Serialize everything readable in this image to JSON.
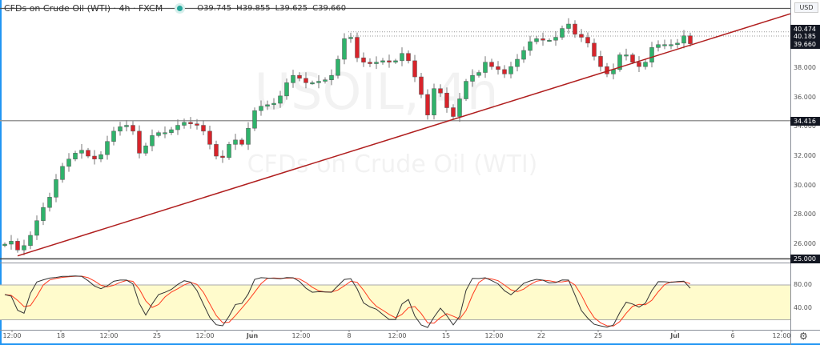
{
  "header": {
    "title": "CFDs on Crude Oil (WTI) · 4h · FXCM",
    "open": "O39.745",
    "high": "H39.855",
    "low": "L39.625",
    "close": "C39.660"
  },
  "watermark": {
    "symbol": "USOIL, 4h",
    "name": "CFDs on Crude Oil (WTI)"
  },
  "price_axis": {
    "currency": "USD",
    "labels": [
      "38.000",
      "36.000",
      "34.000",
      "32.000",
      "30.000",
      "28.000",
      "26.000"
    ],
    "tags": {
      "high_line": "40.474",
      "resistance": "40.185",
      "last": "39.660",
      "support_upper": "34.416",
      "support_lower": "25.000"
    }
  },
  "stoch_axis": {
    "labels": [
      "80.00",
      "40.00"
    ]
  },
  "time_axis": {
    "labels": [
      "12:00",
      "18",
      "12:00",
      "25",
      "12:00",
      "Jun",
      "12:00",
      "8",
      "12:00",
      "15",
      "12:00",
      "22",
      "25",
      "Jul",
      "6",
      "12:00"
    ]
  },
  "colors": {
    "up": "#2fb36b",
    "down": "#d8232a",
    "trendline": "#b01e1e",
    "stoch_k": "#333333",
    "stoch_d": "#ff3b1f",
    "band": "#fffbcc"
  },
  "chart_data": {
    "type": "candlestick",
    "title": "CFDs on Crude Oil (WTI) · 4h · FXCM",
    "ylim": [
      24.6,
      42.0
    ],
    "closes": [
      26.0,
      26.2,
      25.6,
      25.9,
      26.6,
      27.6,
      28.5,
      29.2,
      30.4,
      31.3,
      31.8,
      32.2,
      32.4,
      32.0,
      31.8,
      32.1,
      33.0,
      33.7,
      34.0,
      34.1,
      33.7,
      32.2,
      32.7,
      33.4,
      33.6,
      33.6,
      33.8,
      34.1,
      34.3,
      34.2,
      34.1,
      33.7,
      32.8,
      32.0,
      31.9,
      32.8,
      33.1,
      32.8,
      33.9,
      35.1,
      35.4,
      35.5,
      35.6,
      36.1,
      37.0,
      37.5,
      37.3,
      37.0,
      37.0,
      37.1,
      37.2,
      37.5,
      38.6,
      40.0,
      40.1,
      38.7,
      38.4,
      38.3,
      38.4,
      38.5,
      38.4,
      38.5,
      39.0,
      38.5,
      37.4,
      36.2,
      34.8,
      36.6,
      36.3,
      35.3,
      34.7,
      35.9,
      37.1,
      37.5,
      37.7,
      38.4,
      38.1,
      37.9,
      37.6,
      38.1,
      38.6,
      39.2,
      39.8,
      40.0,
      39.9,
      39.9,
      40.1,
      40.7,
      41.0,
      40.3,
      40.1,
      39.7,
      38.8,
      38.1,
      37.6,
      37.9,
      38.9,
      38.9,
      38.4,
      38.1,
      38.4,
      39.4,
      39.6,
      39.6,
      39.6,
      39.7,
      40.2,
      39.66
    ],
    "last_candle": {
      "open": 39.745,
      "high": 39.855,
      "low": 39.625,
      "close": 39.66
    },
    "horizontal_lines": [
      41.6,
      40.474,
      40.185,
      34.416,
      25.0
    ],
    "trendline": {
      "from_price": 25.2,
      "to_price": 41.7
    },
    "stochastic": {
      "upper_band": 80,
      "lower_band": 20,
      "range": [
        0,
        100
      ]
    }
  }
}
